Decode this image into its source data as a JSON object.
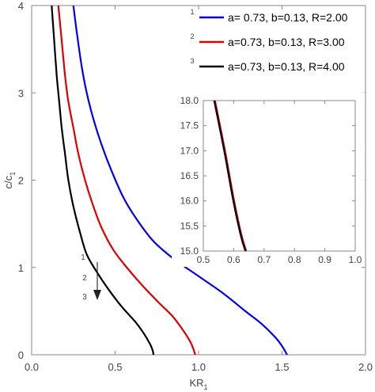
{
  "chart_data": [
    {
      "type": "line",
      "title": "",
      "xlabel": "KR",
      "xlabel_sub": "1",
      "ylabel": "c/c",
      "ylabel_sub": "1",
      "xlim": [
        0,
        2
      ],
      "ylim": [
        0,
        4
      ],
      "xticks": [
        0,
        0.5,
        1,
        1.5,
        2
      ],
      "xtick_labels": [
        "0.0",
        "0.5",
        "1.0",
        "1.5",
        "2.0"
      ],
      "yticks": [
        0,
        1,
        2,
        3,
        4
      ],
      "ytick_labels": [
        "0",
        "1",
        "2",
        "3",
        "4"
      ],
      "grid": false,
      "legend_position": "top-right",
      "series": [
        {
          "id": "1",
          "name": "a= 0.73, b=0.13, R=2.00",
          "color": "#0000ee",
          "points": [
            [
              0.25,
              4.0
            ],
            [
              0.27,
              3.7
            ],
            [
              0.3,
              3.3
            ],
            [
              0.33,
              3.0
            ],
            [
              0.37,
              2.7
            ],
            [
              0.42,
              2.4
            ],
            [
              0.48,
              2.1
            ],
            [
              0.55,
              1.8
            ],
            [
              0.63,
              1.55
            ],
            [
              0.73,
              1.3
            ],
            [
              0.85,
              1.1
            ],
            [
              1.0,
              0.9
            ],
            [
              1.15,
              0.7
            ],
            [
              1.28,
              0.5
            ],
            [
              1.38,
              0.35
            ],
            [
              1.46,
              0.2
            ],
            [
              1.5,
              0.1
            ],
            [
              1.53,
              0.0
            ]
          ]
        },
        {
          "id": "2",
          "name": "a=0.73, b=0.13, R=3.00",
          "color": "#dd0000",
          "points": [
            [
              0.16,
              4.0
            ],
            [
              0.18,
              3.6
            ],
            [
              0.2,
              3.2
            ],
            [
              0.22,
              2.9
            ],
            [
              0.25,
              2.6
            ],
            [
              0.28,
              2.3
            ],
            [
              0.32,
              2.0
            ],
            [
              0.37,
              1.7
            ],
            [
              0.42,
              1.45
            ],
            [
              0.49,
              1.2
            ],
            [
              0.57,
              1.0
            ],
            [
              0.66,
              0.8
            ],
            [
              0.76,
              0.6
            ],
            [
              0.84,
              0.45
            ],
            [
              0.9,
              0.3
            ],
            [
              0.95,
              0.15
            ],
            [
              0.97,
              0.06
            ],
            [
              0.98,
              0.0
            ]
          ]
        },
        {
          "id": "3",
          "name": "a=0.73, b=0.13, R=4.00",
          "color": "#000000",
          "points": [
            [
              0.12,
              4.0
            ],
            [
              0.135,
              3.6
            ],
            [
              0.15,
              3.2
            ],
            [
              0.165,
              2.9
            ],
            [
              0.18,
              2.6
            ],
            [
              0.2,
              2.3
            ],
            [
              0.22,
              2.0
            ],
            [
              0.25,
              1.7
            ],
            [
              0.29,
              1.4
            ],
            [
              0.33,
              1.15
            ],
            [
              0.39,
              0.95
            ],
            [
              0.46,
              0.75
            ],
            [
              0.54,
              0.55
            ],
            [
              0.62,
              0.38
            ],
            [
              0.67,
              0.25
            ],
            [
              0.71,
              0.12
            ],
            [
              0.725,
              0.05
            ],
            [
              0.73,
              0.0
            ]
          ]
        }
      ],
      "annotation": {
        "labels": [
          "1",
          "2",
          "3"
        ],
        "arrow": "down"
      }
    },
    {
      "type": "line",
      "role": "inset",
      "xlim": [
        0.5,
        1.0
      ],
      "ylim": [
        15.0,
        18.0
      ],
      "xticks": [
        0.5,
        0.6,
        0.7,
        0.8,
        0.9,
        1.0
      ],
      "xtick_labels": [
        "0.5",
        "0.6",
        "0.7",
        "0.8",
        "0.9",
        "1.0"
      ],
      "yticks": [
        15.0,
        15.5,
        16.0,
        16.5,
        17.0,
        17.5,
        18.0
      ],
      "ytick_labels": [
        "15.0",
        "15.5",
        "16.0",
        "16.5",
        "17.0",
        "17.5",
        "18.0"
      ],
      "series": [
        {
          "id": "inset-blue",
          "color": "#0000ee",
          "points": [
            [
              0.537,
              18.0
            ],
            [
              0.57,
              17.0
            ],
            [
              0.6,
              16.0
            ],
            [
              0.625,
              15.3
            ],
            [
              0.64,
              15.0
            ]
          ]
        },
        {
          "id": "inset-red",
          "color": "#dd0000",
          "points": [
            [
              0.537,
              18.0
            ],
            [
              0.57,
              17.0
            ],
            [
              0.6,
              16.0
            ],
            [
              0.625,
              15.3
            ],
            [
              0.64,
              15.0
            ]
          ]
        },
        {
          "id": "inset-black",
          "color": "#000000",
          "points": [
            [
              0.536,
              18.0
            ],
            [
              0.569,
              17.0
            ],
            [
              0.599,
              16.0
            ],
            [
              0.624,
              15.3
            ],
            [
              0.639,
              15.0
            ]
          ]
        }
      ]
    }
  ]
}
